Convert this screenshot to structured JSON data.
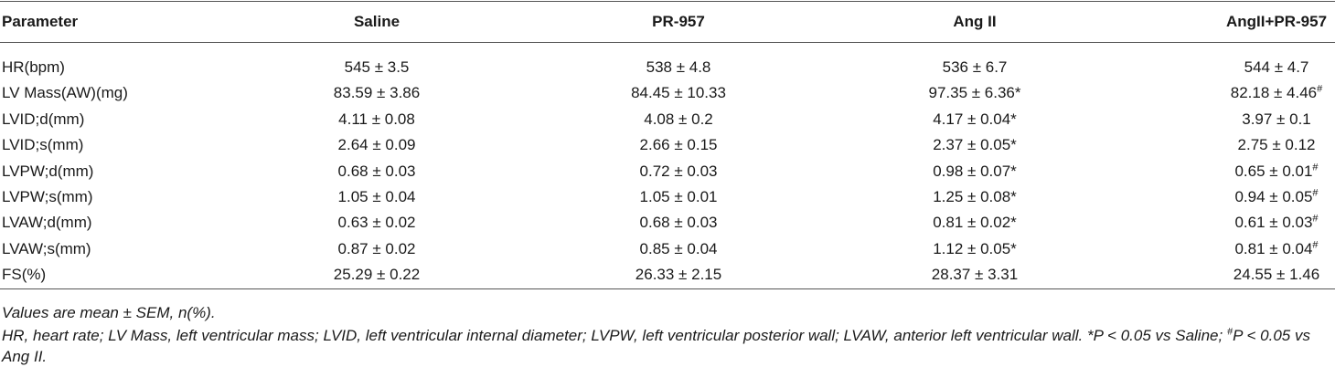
{
  "header": {
    "columns": [
      "Parameter",
      "Saline",
      "PR-957",
      "Ang II",
      "AngII+PR-957"
    ]
  },
  "rows": [
    [
      "HR(bpm)",
      "545 ± 3.5",
      "538 ± 4.8",
      "536 ± 6.7",
      "544 ± 4.7"
    ],
    [
      "LV Mass(AW)(mg)",
      "83.59 ± 3.86",
      "84.45 ± 10.33",
      "97.35 ± 6.36*",
      {
        "text": "82.18 ± 4.46",
        "sup": "#"
      }
    ],
    [
      "LVID;d(mm)",
      "4.11 ± 0.08",
      "4.08 ± 0.2",
      "4.17 ± 0.04*",
      "3.97 ± 0.1"
    ],
    [
      "LVID;s(mm)",
      "2.64 ± 0.09",
      "2.66 ± 0.15",
      "2.37 ± 0.05*",
      "2.75 ± 0.12"
    ],
    [
      "LVPW;d(mm)",
      "0.68 ± 0.03",
      "0.72 ± 0.03",
      "0.98 ± 0.07*",
      {
        "text": "0.65 ± 0.01",
        "sup": "#"
      }
    ],
    [
      "LVPW;s(mm)",
      "1.05 ± 0.04",
      "1.05 ± 0.01",
      "1.25 ± 0.08*",
      {
        "text": "0.94 ± 0.05",
        "sup": "#"
      }
    ],
    [
      "LVAW;d(mm)",
      "0.63 ± 0.02",
      "0.68 ± 0.03",
      "0.81 ± 0.02*",
      {
        "text": "0.61 ± 0.03",
        "sup": "#"
      }
    ],
    [
      "LVAW;s(mm)",
      "0.87 ± 0.02",
      "0.85 ± 0.04",
      "1.12 ± 0.05*",
      {
        "text": "0.81 ± 0.04",
        "sup": "#"
      }
    ],
    [
      "FS(%)",
      "25.29 ± 0.22",
      "26.33 ± 2.15",
      "28.37 ± 3.31",
      "24.55 ± 1.46"
    ]
  ],
  "notes": [
    "Values are mean ± SEM, n(%).",
    [
      "HR, heart rate; LV Mass, left ventricular mass; LVID, left ventricular internal diameter; LVPW, left ventricular posterior wall; LVAW, anterior left ventricular wall. *P < 0.05 vs Saline; ",
      "#",
      "P < 0.05 vs Ang II."
    ]
  ]
}
